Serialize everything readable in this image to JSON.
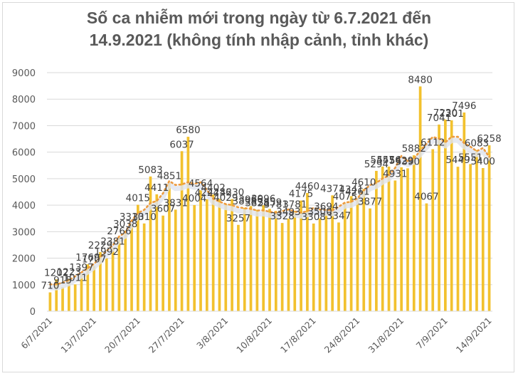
{
  "chart": {
    "title_line1": "Số ca nhiễm mới trong ngày từ 6.7.2021 đến",
    "title_line2": "14.9.2021 (không tính nhập cảnh, tỉnh khác)",
    "bar_color": "#F2C12E",
    "trend_color": "#F4B183",
    "grid_color": "#d9d9d9",
    "axis_text_color": "#595959"
  },
  "chart_data": {
    "type": "bar",
    "title": "Số ca nhiễm mới trong ngày từ 6.7.2021 đến 14.9.2021 (không tính nhập cảnh, tỉnh khác)",
    "xlabel": "",
    "ylabel": "",
    "ylim": [
      0,
      9000
    ],
    "yticks": [
      0,
      1000,
      2000,
      3000,
      4000,
      5000,
      6000,
      7000,
      8000,
      9000
    ],
    "grid": true,
    "legend": "none",
    "x_tick_labels": [
      "6/7/2021",
      "13/7/2021",
      "20/7/2021",
      "27/7/2021",
      "3/8/2021",
      "10/8/2021",
      "17/8/2021",
      "24/8/2021",
      "31/8/2021",
      "7/9/2021",
      "14/9/2021"
    ],
    "x_start": "6/7/2021",
    "x_end": "14/9/2021",
    "series": [
      {
        "name": "Số ca nhiễm mới",
        "type": "bar",
        "values": [
          710,
          1202,
          915,
          1223,
          1011,
          1397,
          1769,
          1707,
          2229,
          1992,
          2381,
          2766,
          3038,
          3310,
          4015,
          3310,
          5083,
          4411,
          3607,
          4851,
          3831,
          6037,
          6580,
          4004,
          4564,
          4224,
          4402,
          4236,
          4029,
          4230,
          3257,
          3898,
          3966,
          3828,
          3996,
          3859,
          3781,
          3328,
          3493,
          3781,
          4175,
          4460,
          3308,
          3500,
          3694,
          4371,
          3347,
          4075,
          4341,
          4261,
          4610,
          3877,
          5294,
          5457,
          5456,
          4931,
          5429,
          5390,
          5882,
          8480,
          4067,
          6112,
          7041,
          7230,
          7201,
          5449,
          7496,
          5551,
          6083,
          5400,
          6258
        ]
      },
      {
        "name": "Xu hướng (trung bình động)",
        "type": "line",
        "style": "dotted"
      }
    ]
  }
}
